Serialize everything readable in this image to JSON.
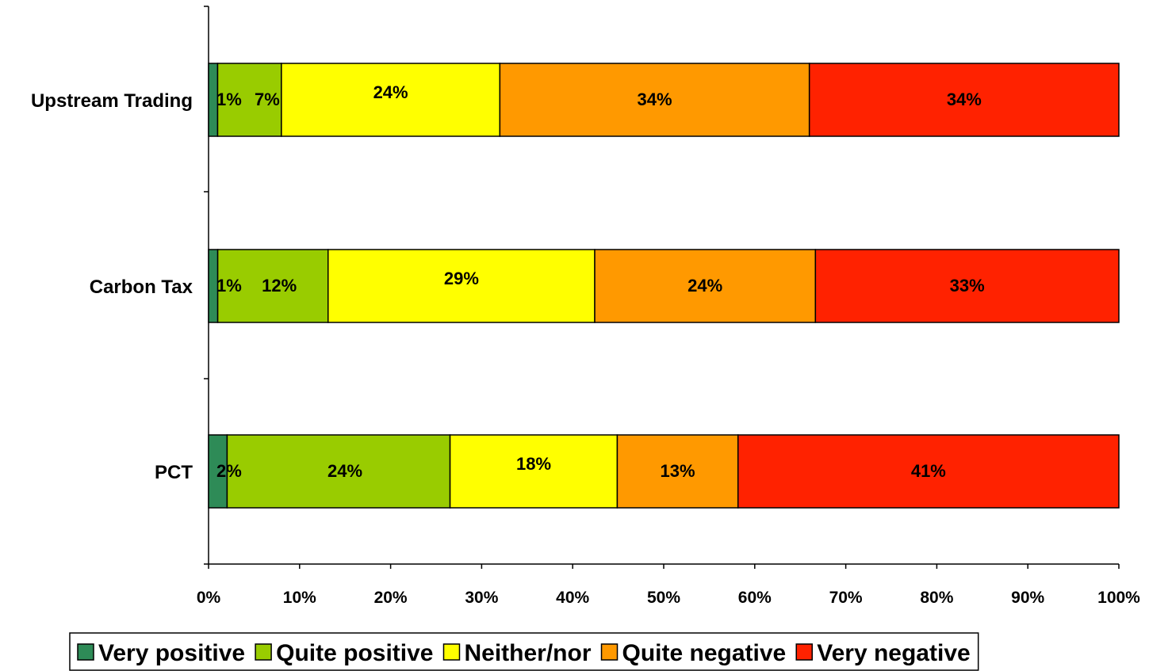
{
  "chart_data": {
    "type": "bar",
    "orientation": "horizontal",
    "stacked": true,
    "categories": [
      "Upstream Trading",
      "Carbon Tax",
      "PCT"
    ],
    "series": [
      {
        "name": "Very positive",
        "color": "#2E8B57",
        "values": [
          1,
          1,
          2
        ],
        "labels": [
          "1%",
          "1%",
          "2%"
        ]
      },
      {
        "name": "Quite positive",
        "color": "#99CC00",
        "values": [
          7,
          12,
          24
        ],
        "labels": [
          "7%",
          "12%",
          "24%"
        ]
      },
      {
        "name": "Neither/nor",
        "color": "#FFFF00",
        "values": [
          24,
          29,
          18
        ],
        "labels": [
          "24%",
          "29%",
          "18%"
        ]
      },
      {
        "name": "Quite negative",
        "color": "#FF9900",
        "values": [
          34,
          24,
          13
        ],
        "labels": [
          "34%",
          "24%",
          "13%"
        ]
      },
      {
        "name": "Very negative",
        "color": "#FF2200",
        "values": [
          34,
          33,
          41
        ],
        "labels": [
          "34%",
          "33%",
          "41%"
        ]
      }
    ],
    "x_ticks": [
      "0%",
      "10%",
      "20%",
      "30%",
      "40%",
      "50%",
      "60%",
      "70%",
      "80%",
      "90%",
      "100%"
    ],
    "xlim": [
      0,
      100
    ],
    "grid": false,
    "legend_position": "bottom",
    "title": "",
    "xlabel": "",
    "ylabel": ""
  }
}
